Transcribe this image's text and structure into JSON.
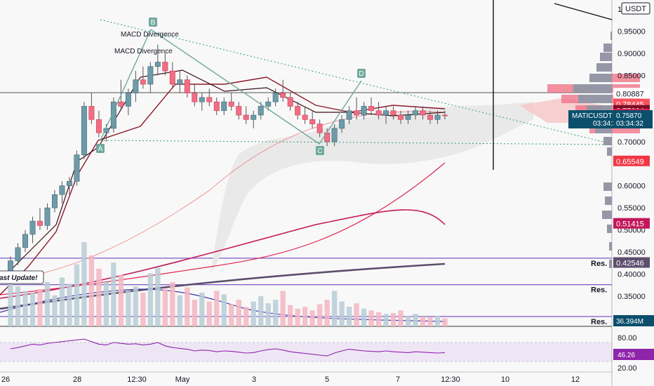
{
  "chart_data": {
    "type": "candlestick",
    "symbol": "MATICUSDT",
    "currency": "USDT",
    "last_price": "0.75870",
    "countdown": "03:34:32",
    "y_ticks": [
      "1",
      "0.95000",
      "0.90000",
      "0.85000",
      "0.70000",
      "0.60000",
      "0.55000",
      "0.50000",
      "0.45000",
      "0.40000",
      "0.35000"
    ],
    "price_labels": [
      {
        "text": "0.80887",
        "price": 0.80887,
        "bg": "#ffffff",
        "fg": "#131722"
      },
      {
        "text": "0.78445",
        "price": 0.78445,
        "bg": "#f7525f",
        "fg": "#ffffff"
      },
      {
        "text": "0.77004",
        "price": 0.77004,
        "bg": "#7a0f26",
        "fg": "#ffffff"
      },
      {
        "text": "0.76188",
        "price": 0.76188,
        "bg": "#e0234f",
        "fg": "#ffffff"
      },
      {
        "text": "0.65549",
        "price": 0.65549,
        "bg": "#f23645",
        "fg": "#ffffff"
      },
      {
        "text": "0.51415",
        "price": 0.51415,
        "bg": "#c2185b",
        "fg": "#ffffff"
      },
      {
        "text": "0.42546",
        "price": 0.42546,
        "bg": "#5d4e6d",
        "fg": "#ffffff"
      }
    ],
    "x_labels": [
      "26",
      "28",
      "12:30",
      "May",
      "3",
      "5",
      "7",
      "12:30",
      "10",
      "12"
    ],
    "resistance_label": "Res.",
    "resistance_levels": [
      0.436,
      0.376
    ],
    "volume_label": "36.394M",
    "rsi_labels": [
      "80.00",
      "20.00"
    ],
    "rsi_value": "46.26",
    "annotations": {
      "macd_1": "MACD Divergence",
      "macd_2": "MACD Divergence",
      "update": "ast Update!",
      "points": [
        "A",
        "B",
        "C",
        "D"
      ]
    },
    "colors": {
      "up": "#6f9aa8",
      "down": "#f06e83",
      "wick": "#555555"
    },
    "candles": [
      [
        0.4,
        0.44,
        0.38,
        0.43
      ],
      [
        0.43,
        0.47,
        0.42,
        0.46
      ],
      [
        0.46,
        0.5,
        0.45,
        0.49
      ],
      [
        0.49,
        0.53,
        0.47,
        0.52
      ],
      [
        0.52,
        0.55,
        0.5,
        0.51
      ],
      [
        0.51,
        0.56,
        0.5,
        0.55
      ],
      [
        0.55,
        0.59,
        0.54,
        0.58
      ],
      [
        0.58,
        0.61,
        0.56,
        0.6
      ],
      [
        0.6,
        0.62,
        0.58,
        0.61
      ],
      [
        0.61,
        0.68,
        0.6,
        0.67
      ],
      [
        0.67,
        0.79,
        0.66,
        0.78
      ],
      [
        0.78,
        0.81,
        0.74,
        0.75
      ],
      [
        0.75,
        0.77,
        0.71,
        0.72
      ],
      [
        0.72,
        0.74,
        0.7,
        0.73
      ],
      [
        0.73,
        0.8,
        0.72,
        0.79
      ],
      [
        0.79,
        0.84,
        0.77,
        0.78
      ],
      [
        0.78,
        0.82,
        0.76,
        0.81
      ],
      [
        0.81,
        0.86,
        0.79,
        0.84
      ],
      [
        0.84,
        0.87,
        0.82,
        0.83
      ],
      [
        0.83,
        0.88,
        0.81,
        0.87
      ],
      [
        0.87,
        0.92,
        0.85,
        0.88
      ],
      [
        0.88,
        0.9,
        0.85,
        0.86
      ],
      [
        0.86,
        0.88,
        0.82,
        0.83
      ],
      [
        0.83,
        0.86,
        0.81,
        0.84
      ],
      [
        0.84,
        0.85,
        0.8,
        0.81
      ],
      [
        0.81,
        0.83,
        0.78,
        0.79
      ],
      [
        0.79,
        0.81,
        0.77,
        0.8
      ],
      [
        0.8,
        0.82,
        0.78,
        0.79
      ],
      [
        0.79,
        0.8,
        0.76,
        0.77
      ],
      [
        0.77,
        0.8,
        0.76,
        0.79
      ],
      [
        0.79,
        0.81,
        0.77,
        0.78
      ],
      [
        0.78,
        0.79,
        0.75,
        0.76
      ],
      [
        0.76,
        0.78,
        0.74,
        0.75
      ],
      [
        0.75,
        0.77,
        0.73,
        0.76
      ],
      [
        0.76,
        0.79,
        0.75,
        0.78
      ],
      [
        0.78,
        0.8,
        0.77,
        0.79
      ],
      [
        0.79,
        0.82,
        0.78,
        0.81
      ],
      [
        0.81,
        0.84,
        0.79,
        0.8
      ],
      [
        0.8,
        0.81,
        0.77,
        0.78
      ],
      [
        0.78,
        0.79,
        0.75,
        0.76
      ],
      [
        0.76,
        0.78,
        0.74,
        0.75
      ],
      [
        0.75,
        0.77,
        0.73,
        0.74
      ],
      [
        0.74,
        0.75,
        0.71,
        0.72
      ],
      [
        0.72,
        0.73,
        0.69,
        0.7
      ],
      [
        0.7,
        0.74,
        0.69,
        0.73
      ],
      [
        0.73,
        0.76,
        0.72,
        0.75
      ],
      [
        0.75,
        0.78,
        0.74,
        0.77
      ],
      [
        0.77,
        0.8,
        0.75,
        0.76
      ],
      [
        0.76,
        0.79,
        0.75,
        0.78
      ],
      [
        0.78,
        0.8,
        0.76,
        0.77
      ],
      [
        0.77,
        0.79,
        0.75,
        0.76
      ],
      [
        0.76,
        0.78,
        0.74,
        0.77
      ],
      [
        0.77,
        0.78,
        0.75,
        0.76
      ],
      [
        0.76,
        0.77,
        0.74,
        0.75
      ],
      [
        0.75,
        0.77,
        0.74,
        0.76
      ],
      [
        0.76,
        0.78,
        0.75,
        0.77
      ],
      [
        0.77,
        0.78,
        0.75,
        0.76
      ],
      [
        0.76,
        0.77,
        0.74,
        0.75
      ],
      [
        0.75,
        0.77,
        0.74,
        0.76
      ],
      [
        0.76,
        0.77,
        0.75,
        0.759
      ]
    ],
    "volumes": [
      60,
      45,
      40,
      38,
      42,
      50,
      35,
      55,
      48,
      70,
      95,
      80,
      65,
      50,
      72,
      58,
      40,
      45,
      38,
      60,
      66,
      42,
      50,
      35,
      44,
      30,
      38,
      28,
      40,
      36,
      25,
      30,
      22,
      28,
      34,
      26,
      30,
      40,
      24,
      20,
      22,
      18,
      25,
      30,
      40,
      28,
      22,
      26,
      20,
      18,
      16,
      14,
      15,
      18,
      12,
      14,
      11,
      10,
      12,
      9
    ],
    "rsi": [
      55,
      58,
      62,
      66,
      64,
      68,
      70,
      72,
      74,
      76,
      78,
      72,
      66,
      64,
      70,
      68,
      66,
      67,
      64,
      66,
      70,
      62,
      58,
      56,
      54,
      50,
      52,
      51,
      48,
      50,
      49,
      47,
      45,
      46,
      50,
      53,
      55,
      52,
      48,
      46,
      44,
      42,
      40,
      38,
      45,
      50,
      54,
      52,
      50,
      49,
      48,
      50,
      48,
      47,
      46,
      48,
      47,
      46,
      45,
      46
    ]
  }
}
